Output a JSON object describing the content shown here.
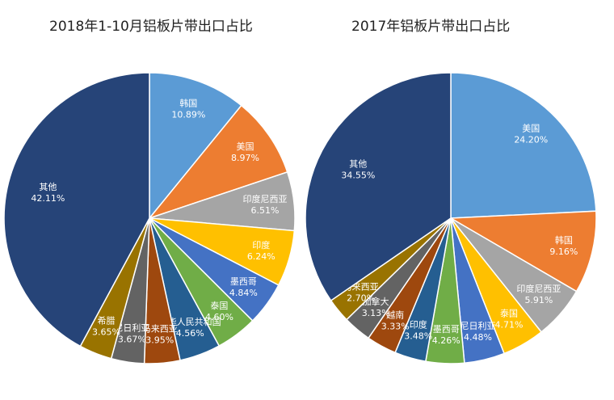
{
  "chart_data": [
    {
      "type": "pie",
      "title": "2018年1-10月铝板片带出口占比",
      "slices": [
        {
          "label": "韩国",
          "value": 10.89,
          "text": "10.89%",
          "color": "#5b9bd5"
        },
        {
          "label": "美国",
          "value": 8.97,
          "text": "8.97%",
          "color": "#ed7d31"
        },
        {
          "label": "印度尼西亚",
          "value": 6.51,
          "text": "6.51%",
          "color": "#a5a5a5"
        },
        {
          "label": "印度",
          "value": 6.24,
          "text": "6.24%",
          "color": "#ffc000"
        },
        {
          "label": "墨西哥",
          "value": 4.84,
          "text": "4.84%",
          "color": "#4472c4"
        },
        {
          "label": "泰国",
          "value": 4.6,
          "text": "4.60%",
          "color": "#70ad47"
        },
        {
          "label": "中华人民共和国",
          "value": 4.56,
          "text": "4.56%",
          "color": "#255e91"
        },
        {
          "label": "马来西亚",
          "value": 3.95,
          "text": "3.95%",
          "color": "#9e480e"
        },
        {
          "label": "尼日利亚",
          "value": 3.67,
          "text": "3.67%",
          "color": "#636363"
        },
        {
          "label": "希腊",
          "value": 3.65,
          "text": "3.65%",
          "color": "#997300"
        },
        {
          "label": "其他",
          "value": 42.11,
          "text": "42.11%",
          "color": "#264478"
        }
      ]
    },
    {
      "type": "pie",
      "title": "2017年铝板片带出口占比",
      "slices": [
        {
          "label": "美国",
          "value": 24.2,
          "text": "24.20%",
          "color": "#5b9bd5"
        },
        {
          "label": "韩国",
          "value": 9.16,
          "text": "9.16%",
          "color": "#ed7d31"
        },
        {
          "label": "印度尼西亚",
          "value": 5.91,
          "text": "5.91%",
          "color": "#a5a5a5"
        },
        {
          "label": "泰国",
          "value": 4.71,
          "text": "4.71%",
          "color": "#ffc000"
        },
        {
          "label": "尼日利亚",
          "value": 4.48,
          "text": "4.48%",
          "color": "#4472c4"
        },
        {
          "label": "墨西哥",
          "value": 4.26,
          "text": "4.26%",
          "color": "#70ad47"
        },
        {
          "label": "印度",
          "value": 3.48,
          "text": "3.48%",
          "color": "#255e91"
        },
        {
          "label": "越南",
          "value": 3.33,
          "text": "3.33%",
          "color": "#9e480e"
        },
        {
          "label": "加拿大",
          "value": 3.13,
          "text": "3.13%",
          "color": "#636363"
        },
        {
          "label": "马来西亚",
          "value": 2.7,
          "text": "2.70%",
          "color": "#997300"
        },
        {
          "label": "其他",
          "value": 34.55,
          "text": "34.55%",
          "color": "#264478"
        }
      ]
    }
  ]
}
